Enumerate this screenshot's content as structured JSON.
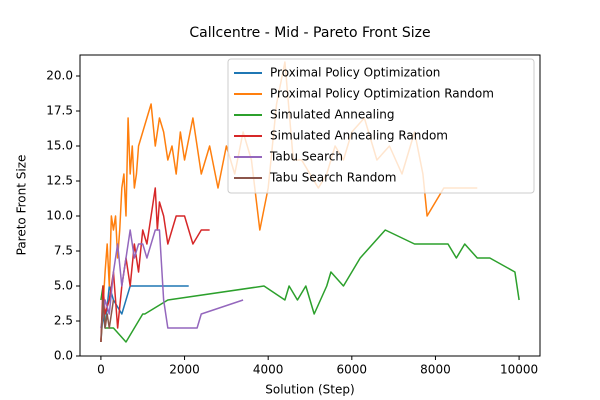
{
  "chart_data": {
    "type": "line",
    "title": "Callcentre - Mid - Pareto Front Size",
    "x_label": "Solution (Step)",
    "y_label": "Pareto Front Size",
    "xlim": [
      -500,
      10500
    ],
    "ylim": [
      0,
      21.5
    ],
    "xticks": [
      0,
      2000,
      4000,
      6000,
      8000,
      10000
    ],
    "yticks": [
      {
        "value": 0,
        "label": "0.0"
      },
      {
        "value": 2.5,
        "label": "2.5"
      },
      {
        "value": 5,
        "label": "5.0"
      },
      {
        "value": 7.5,
        "label": "7.5"
      },
      {
        "value": 10,
        "label": "10.0"
      },
      {
        "value": 12.5,
        "label": "12.5"
      },
      {
        "value": 15,
        "label": "15.0"
      },
      {
        "value": 17.5,
        "label": "17.5"
      },
      {
        "value": 20,
        "label": "20.0"
      }
    ],
    "legend": "upper right",
    "series": [
      {
        "name": "Proximal Policy Optimization",
        "color": "#1f77b4",
        "x": [
          0,
          50,
          100,
          200,
          300,
          500,
          700,
          1100,
          1500,
          2100
        ],
        "values": [
          1,
          3,
          2,
          5,
          4,
          3,
          5,
          5,
          5,
          5
        ]
      },
      {
        "name": "Proximal Policy Optimization Random",
        "color": "#ff7f0e",
        "x": [
          0,
          100,
          150,
          200,
          250,
          300,
          350,
          400,
          450,
          500,
          550,
          600,
          650,
          700,
          750,
          800,
          850,
          900,
          1000,
          1100,
          1200,
          1300,
          1400,
          1500,
          1600,
          1700,
          1800,
          1900,
          2000,
          2200,
          2400,
          2600,
          2800,
          3000,
          3200,
          3400,
          3600,
          3800,
          4000,
          4200,
          4400,
          4600,
          4800,
          5000,
          5200,
          5400,
          5600,
          5800,
          6000,
          6300,
          6600,
          6900,
          7200,
          7500,
          7700,
          7800,
          8000,
          8200,
          8500,
          9000
        ],
        "values": [
          1,
          6,
          8,
          5,
          10,
          9,
          10,
          7,
          9,
          12,
          13,
          10,
          17,
          13,
          15,
          12,
          13,
          15,
          16,
          17,
          18,
          15,
          17,
          16,
          14,
          15,
          13,
          16,
          14,
          17,
          13,
          15,
          12,
          15,
          13,
          16,
          14,
          9,
          12,
          18,
          21,
          14,
          14,
          13,
          12,
          13,
          15,
          14,
          16,
          17,
          14,
          15,
          13,
          16,
          13,
          10,
          11,
          12,
          12,
          12
        ]
      },
      {
        "name": "Simulated Annealing",
        "color": "#2ca02c",
        "x": [
          0,
          50,
          100,
          300,
          600,
          1000,
          1050,
          1600,
          3900,
          4400,
          4500,
          4700,
          4900,
          5000,
          5100,
          5400,
          5500,
          5800,
          6000,
          6200,
          6500,
          6800,
          7500,
          8300,
          8500,
          8700,
          9000,
          9300,
          9900,
          10000
        ],
        "values": [
          4,
          5,
          2,
          2,
          1,
          3,
          3,
          4,
          5,
          4,
          5,
          4,
          5,
          4,
          3,
          5,
          6,
          5,
          6,
          7,
          8,
          9,
          8,
          8,
          7,
          8,
          7,
          7,
          6,
          4
        ]
      },
      {
        "name": "Simulated Annealing Random",
        "color": "#d62728",
        "x": [
          0,
          50,
          100,
          200,
          300,
          400,
          500,
          600,
          700,
          800,
          900,
          1000,
          1100,
          1200,
          1300,
          1350,
          1400,
          1500,
          1600,
          1800,
          2000,
          2200,
          2400,
          2600
        ],
        "values": [
          1,
          5,
          3,
          4,
          6,
          2,
          5,
          7,
          5,
          8,
          6,
          9,
          8,
          10,
          12,
          9,
          11,
          10,
          8,
          10,
          10,
          8,
          9,
          9
        ]
      },
      {
        "name": "Tabu Search",
        "color": "#9467bd",
        "x": [
          0,
          100,
          200,
          300,
          400,
          500,
          600,
          700,
          800,
          900,
          1000,
          1100,
          1200,
          1300,
          1400,
          1500,
          1600,
          2300,
          2400,
          3400
        ],
        "values": [
          2,
          4,
          3,
          6,
          8,
          5,
          7,
          9,
          7,
          8,
          8,
          7,
          8,
          9,
          9,
          4,
          2,
          2,
          3,
          4
        ]
      },
      {
        "name": "Tabu Search Random",
        "color": "#8c564b",
        "x": [
          0,
          50,
          100,
          150,
          200,
          300
        ],
        "values": [
          1,
          4,
          2,
          3,
          2,
          4
        ]
      }
    ]
  }
}
